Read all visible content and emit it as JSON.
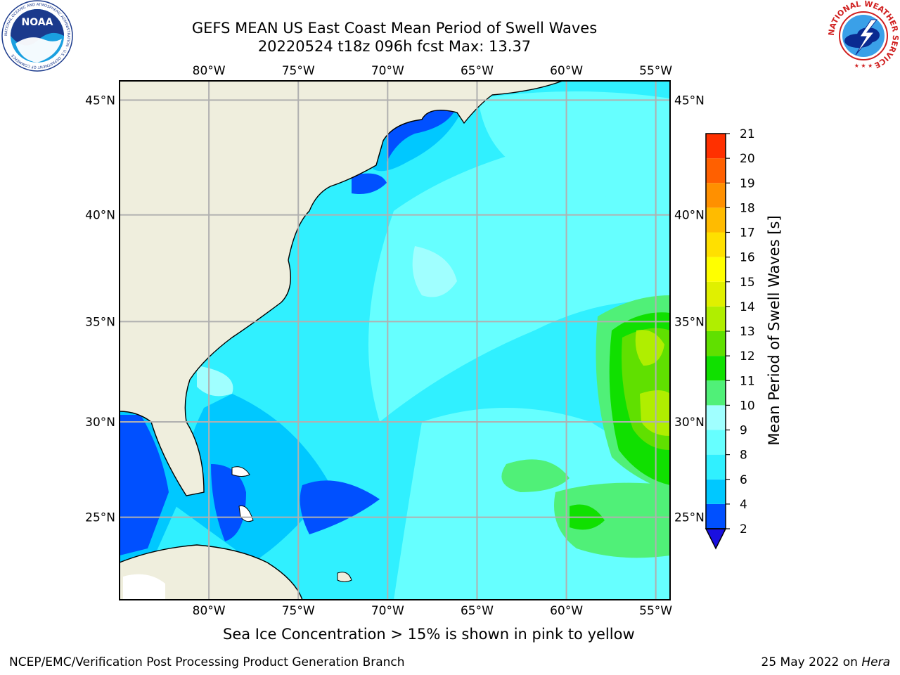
{
  "header": {
    "title_line1": "GEFS MEAN US East Coast Mean Period of Swell Waves",
    "title_line2": "20220524 t18z 096h fcst   Max: 13.37"
  },
  "logos": {
    "noaa_text": "NOAA",
    "noaa_ring_text": "NATIONAL OCEANIC AND ATMOSPHERIC ADMINISTRATION · U.S. DEPARTMENT OF COMMERCE",
    "nws_ring_text": "NATIONAL WEATHER SERVICE"
  },
  "map": {
    "lon_labels": [
      "80°W",
      "75°W",
      "70°W",
      "65°W",
      "60°W",
      "55°W"
    ],
    "lat_labels": [
      "45°N",
      "40°N",
      "35°N",
      "30°N",
      "25°N"
    ],
    "lon_values": [
      -80,
      -75,
      -70,
      -65,
      -60,
      -55
    ],
    "lat_values": [
      45,
      40,
      35,
      30,
      25
    ],
    "lon_range": [
      -85,
      -54.2
    ],
    "lat_range": [
      20.5,
      45.8
    ],
    "land_color": "#efeedd",
    "grid_color": "#b0b0b0"
  },
  "colorbar": {
    "title": "Mean Period of Swell Waves [s]",
    "ticks": [
      "2",
      "4",
      "6",
      "8",
      "9",
      "10",
      "11",
      "12",
      "13",
      "14",
      "15",
      "16",
      "17",
      "18",
      "19",
      "20",
      "21"
    ],
    "colors": [
      "#0050ff",
      "#00c8ff",
      "#30f0ff",
      "#66ffff",
      "#a0ffff",
      "#50f078",
      "#10e000",
      "#60e000",
      "#b0ee00",
      "#e0f000",
      "#ffff00",
      "#ffe000",
      "#ffbb00",
      "#ff9000",
      "#ff6000",
      "#ff3000",
      "#ff0000"
    ],
    "under_color": "#1a10e0"
  },
  "note": "Sea Ice Concentration > 15% is shown in pink to yellow",
  "footer": {
    "left": "NCEP/EMC/Verification Post Processing Product Generation Branch",
    "right_date": "25 May 2022 on ",
    "right_host": "Hera"
  }
}
